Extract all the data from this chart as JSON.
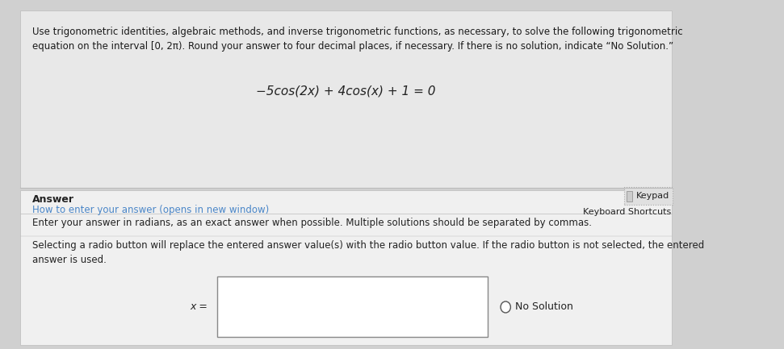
{
  "bg_color": "#d0d0d0",
  "top_panel_bg": "#e8e8e8",
  "bottom_panel_bg": "#f0f0f0",
  "instruction_text": "Use trigonometric identities, algebraic methods, and inverse trigonometric functions, as necessary, to solve the following trigonometric\nequation on the interval [0, 2π). Round your answer to four decimal places, if necessary. If there is no solution, indicate “No Solution.”",
  "equation": "−5cos(2x) + 4cos(x) + 1 = 0",
  "answer_label": "Answer",
  "link_text": "How to enter your answer (opens in new window)",
  "keypad_label": "Keypad",
  "keyboard_label": "Keyboard Shortcuts",
  "enter_text": "Enter your answer in radians, as an exact answer when possible. Multiple solutions should be separated by commas.",
  "selecting_text": "Selecting a radio button will replace the entered answer value(s) with the radio button value. If the radio button is not selected, the entered\nanswer is used.",
  "x_equals": "x =",
  "no_solution": "No Solution",
  "link_color": "#4a86c8",
  "text_color": "#1a1a1a",
  "dark_text": "#222222",
  "panel_divider": "#bbbbbb",
  "input_box_color": "#ffffff",
  "input_box_border": "#888888",
  "keypad_box_border": "#aaaaaa",
  "keypad_box_bg": "#e0e0e0"
}
